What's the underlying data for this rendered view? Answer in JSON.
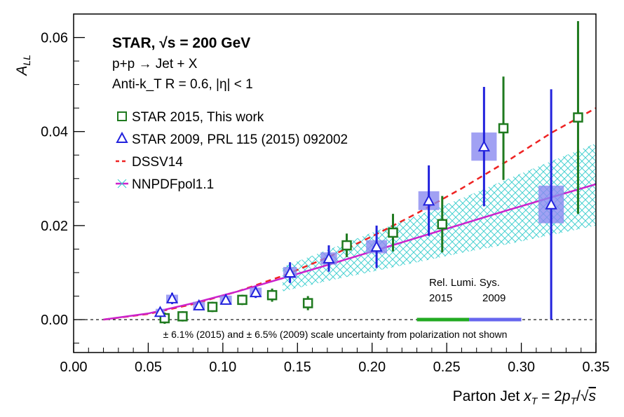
{
  "chart_data": {
    "type": "scatter",
    "title": "",
    "xlabel": "Parton Jet x_T = 2p_T/√s",
    "ylabel": "A_LL",
    "xlim": [
      0.0,
      0.35
    ],
    "ylim": [
      -0.007,
      0.065
    ],
    "x_ticks": [
      "0.00",
      "0.05",
      "0.10",
      "0.15",
      "0.20",
      "0.25",
      "0.30",
      "0.35"
    ],
    "y_ticks": [
      "0.00",
      "0.02",
      "0.04",
      "0.06"
    ],
    "grid": false,
    "legend_position": "top-left",
    "header": {
      "line1": "STAR, √s = 200 GeV",
      "line2": "p+p → Jet + X",
      "line3": "Anti-k_T R = 0.6, |η| < 1"
    },
    "legend": [
      {
        "label": "STAR 2015, This work",
        "marker": "open-square",
        "color": "#1f7a1f"
      },
      {
        "label": "STAR 2009, PRL 115 (2015) 092002",
        "marker": "open-triangle",
        "color": "#2222dd"
      },
      {
        "label": "DSSV14",
        "marker": "dashed-line",
        "color": "#ee2222"
      },
      {
        "label": "NNPDFpol1.1",
        "marker": "line-band",
        "color": "#cc22cc"
      }
    ],
    "series": [
      {
        "name": "STAR 2015, This work",
        "marker": "open-square",
        "color": "#1f7a1f",
        "points": [
          {
            "x": 0.061,
            "y": 0.0003,
            "err": 0.0012
          },
          {
            "x": 0.073,
            "y": 0.0007,
            "err": 0.0011
          },
          {
            "x": 0.093,
            "y": 0.0027,
            "err": 0.0011
          },
          {
            "x": 0.113,
            "y": 0.0042,
            "err": 0.0011
          },
          {
            "x": 0.133,
            "y": 0.0052,
            "err": 0.0014
          },
          {
            "x": 0.157,
            "y": 0.0035,
            "err": 0.0015
          },
          {
            "x": 0.183,
            "y": 0.0158,
            "err": 0.0025
          },
          {
            "x": 0.214,
            "y": 0.0185,
            "err": 0.004
          },
          {
            "x": 0.247,
            "y": 0.0203,
            "err": 0.006
          },
          {
            "x": 0.288,
            "y": 0.0407,
            "err": 0.011
          },
          {
            "x": 0.338,
            "y": 0.043,
            "err": 0.0205
          }
        ]
      },
      {
        "name": "STAR 2009, PRL 115 (2015) 092002",
        "marker": "open-triangle",
        "color": "#2222dd",
        "points": [
          {
            "x": 0.058,
            "y": 0.0016,
            "err": 0.001,
            "sys": 0.0007,
            "w": 0.006
          },
          {
            "x": 0.066,
            "y": 0.0045,
            "err": 0.0012,
            "sys": 0.0008,
            "w": 0.008
          },
          {
            "x": 0.084,
            "y": 0.003,
            "err": 0.001,
            "sys": 0.0008,
            "w": 0.008
          },
          {
            "x": 0.102,
            "y": 0.0042,
            "err": 0.001,
            "sys": 0.0009,
            "w": 0.008
          },
          {
            "x": 0.122,
            "y": 0.0058,
            "err": 0.0012,
            "sys": 0.001,
            "w": 0.008
          },
          {
            "x": 0.145,
            "y": 0.01,
            "err": 0.0022,
            "sys": 0.0012,
            "w": 0.009
          },
          {
            "x": 0.171,
            "y": 0.013,
            "err": 0.0028,
            "sys": 0.0013,
            "w": 0.011
          },
          {
            "x": 0.203,
            "y": 0.0155,
            "err": 0.0045,
            "sys": 0.0014,
            "w": 0.014
          },
          {
            "x": 0.238,
            "y": 0.0253,
            "err": 0.0075,
            "sys": 0.002,
            "w": 0.014
          },
          {
            "x": 0.275,
            "y": 0.0368,
            "err": 0.0127,
            "sys": 0.003,
            "w": 0.017
          },
          {
            "x": 0.32,
            "y": 0.0245,
            "err": 0.0245,
            "sys": 0.004,
            "w": 0.017
          }
        ]
      }
    ],
    "curves": [
      {
        "name": "DSSV14",
        "style": "dashed",
        "color": "#ee2222",
        "x": [
          0.02,
          0.05,
          0.08,
          0.11,
          0.14,
          0.17,
          0.2,
          0.23,
          0.26,
          0.29,
          0.32,
          0.35
        ],
        "y": [
          0.0,
          0.0012,
          0.0033,
          0.006,
          0.0093,
          0.0132,
          0.0177,
          0.0226,
          0.0279,
          0.0336,
          0.0397,
          0.045
        ]
      },
      {
        "name": "NNPDFpol1.1",
        "style": "solid",
        "color": "#cc22cc",
        "x": [
          0.02,
          0.05,
          0.08,
          0.11,
          0.14,
          0.17,
          0.2,
          0.23,
          0.26,
          0.29,
          0.32,
          0.35
        ],
        "y": [
          0.0,
          0.0013,
          0.0035,
          0.006,
          0.0088,
          0.0116,
          0.0145,
          0.0174,
          0.0203,
          0.0232,
          0.026,
          0.0288
        ],
        "band_lo": [
          0.0,
          0.0008,
          0.0022,
          0.004,
          0.006,
          0.0082,
          0.0102,
          0.0122,
          0.0142,
          0.016,
          0.018,
          0.02
        ],
        "band_hi": [
          0.0,
          0.0017,
          0.0045,
          0.0078,
          0.0112,
          0.0148,
          0.0185,
          0.0221,
          0.0258,
          0.0298,
          0.0337,
          0.0375
        ],
        "band_from_x": 0.14,
        "band_color": "#33cccc"
      }
    ],
    "rel_lumi": {
      "title": "Rel. Lumi. Sys.",
      "label_2015": "2015",
      "label_2009": "2009",
      "segment_2015": [
        0.23,
        0.265
      ],
      "segment_2009": [
        0.265,
        0.3
      ],
      "color_2015": "#22aa22",
      "color_2009": "#6666ee"
    },
    "footnote": "± 6.1% (2015) and ± 6.5% (2009) scale uncertainty from polarization not shown"
  }
}
